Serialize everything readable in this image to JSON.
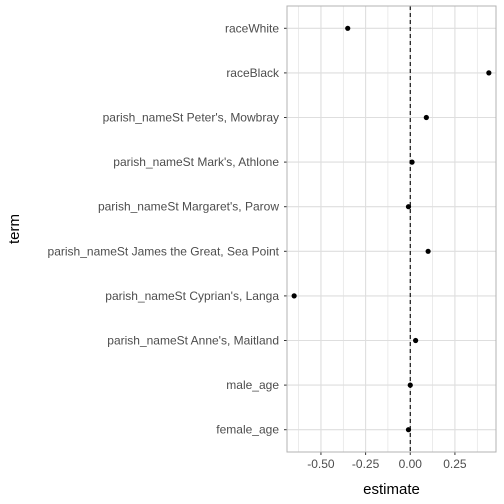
{
  "chart_data": {
    "type": "scatter",
    "xlabel": "estimate",
    "ylabel": "term",
    "xlim": [
      -0.69,
      0.48
    ],
    "x_ticks": [
      -0.5,
      -0.25,
      0.0,
      0.25
    ],
    "x_tick_labels": [
      "-0.50",
      "-0.25",
      "0.00",
      "0.25"
    ],
    "reference_line": {
      "x": 0,
      "style": "dashed"
    },
    "grid": true,
    "points": [
      {
        "term": "raceWhite",
        "estimate": -0.35
      },
      {
        "term": "raceBlack",
        "estimate": 0.44
      },
      {
        "term": "parish_nameSt Peter's, Mowbray",
        "estimate": 0.09
      },
      {
        "term": "parish_nameSt Mark's, Athlone",
        "estimate": 0.01
      },
      {
        "term": "parish_nameSt Margaret's, Parow",
        "estimate": -0.01
      },
      {
        "term": "parish_nameSt James the Great, Sea Point",
        "estimate": 0.1
      },
      {
        "term": "parish_nameSt Cyprian's, Langa",
        "estimate": -0.65
      },
      {
        "term": "parish_nameSt Anne's, Maitland",
        "estimate": 0.03
      },
      {
        "term": "male_age",
        "estimate": 0.0
      },
      {
        "term": "female_age",
        "estimate": -0.01
      }
    ],
    "colors": {
      "panel_border": "#b3b3b3",
      "grid": "#dedede",
      "point": "#000000",
      "reference": "#000000"
    }
  }
}
